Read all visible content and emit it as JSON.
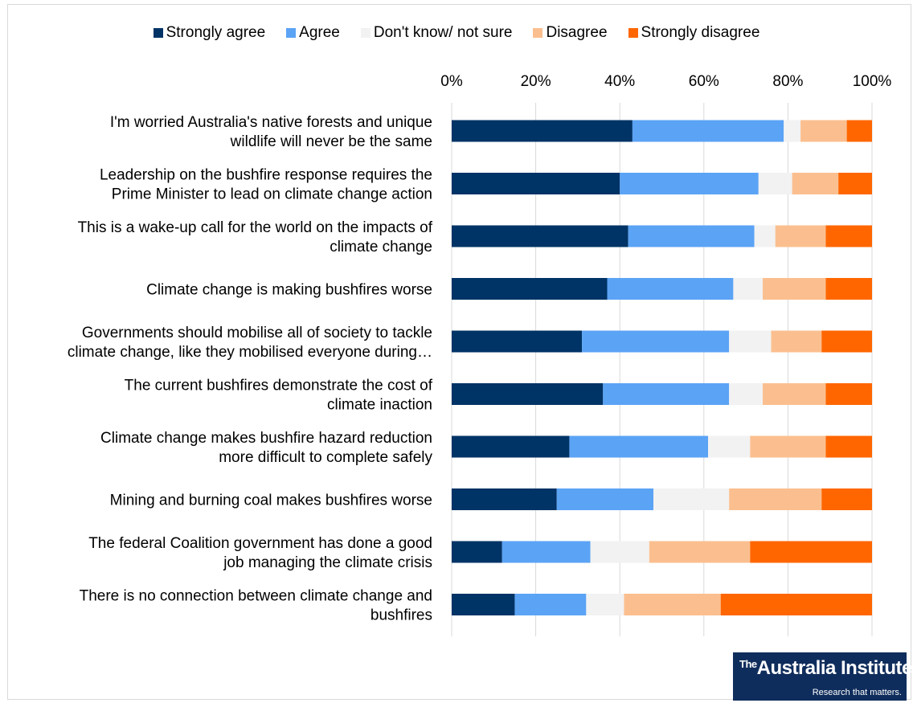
{
  "chart_data": {
    "type": "bar",
    "orientation": "horizontal",
    "stacked": "percent",
    "xlim": [
      0,
      100
    ],
    "x_ticks": [
      "0%",
      "20%",
      "40%",
      "60%",
      "80%",
      "100%"
    ],
    "x_tick_values": [
      0,
      20,
      40,
      60,
      80,
      100
    ],
    "axis_position": "top",
    "grid": true,
    "legend_position": "top",
    "categories": [
      [
        "I'm worried Australia's native forests and unique",
        "wildlife will never be the same"
      ],
      [
        "Leadership on the bushfire response requires the",
        "Prime Minister to lead on climate change action"
      ],
      [
        "This is a wake-up call for the world on the impacts of",
        "climate change"
      ],
      [
        "Climate change is making bushfires worse"
      ],
      [
        "Governments should mobilise all of society to tackle",
        "climate change, like they mobilised everyone during…"
      ],
      [
        "The current bushfires demonstrate the cost of",
        "climate inaction"
      ],
      [
        "Climate change makes bushfire hazard reduction",
        "more difficult to complete safely"
      ],
      [
        "Mining and burning coal makes bushfires worse"
      ],
      [
        "The federal Coalition government has done a good",
        "job managing the climate crisis"
      ],
      [
        "There is no connection between climate change and",
        "bushfires"
      ]
    ],
    "series": [
      {
        "name": "Strongly agree",
        "color": "#003366",
        "values": [
          43,
          40,
          42,
          37,
          31,
          36,
          28,
          25,
          12,
          15
        ]
      },
      {
        "name": "Agree",
        "color": "#5ba3f5",
        "values": [
          36,
          33,
          30,
          30,
          35,
          30,
          33,
          23,
          21,
          17
        ]
      },
      {
        "name": "Don't know/ not sure",
        "color": "#f2f2f2",
        "values": [
          4,
          8,
          5,
          7,
          10,
          8,
          10,
          18,
          14,
          9
        ]
      },
      {
        "name": "Disagree",
        "color": "#fbbf8f",
        "values": [
          11,
          11,
          12,
          15,
          12,
          15,
          18,
          22,
          24,
          23
        ]
      },
      {
        "name": "Strongly disagree",
        "color": "#ff6600",
        "values": [
          6,
          8,
          11,
          11,
          12,
          11,
          11,
          12,
          29,
          36
        ]
      }
    ]
  },
  "logo": {
    "the": "The",
    "name": "Australia Institute",
    "tagline": "Research that matters."
  }
}
